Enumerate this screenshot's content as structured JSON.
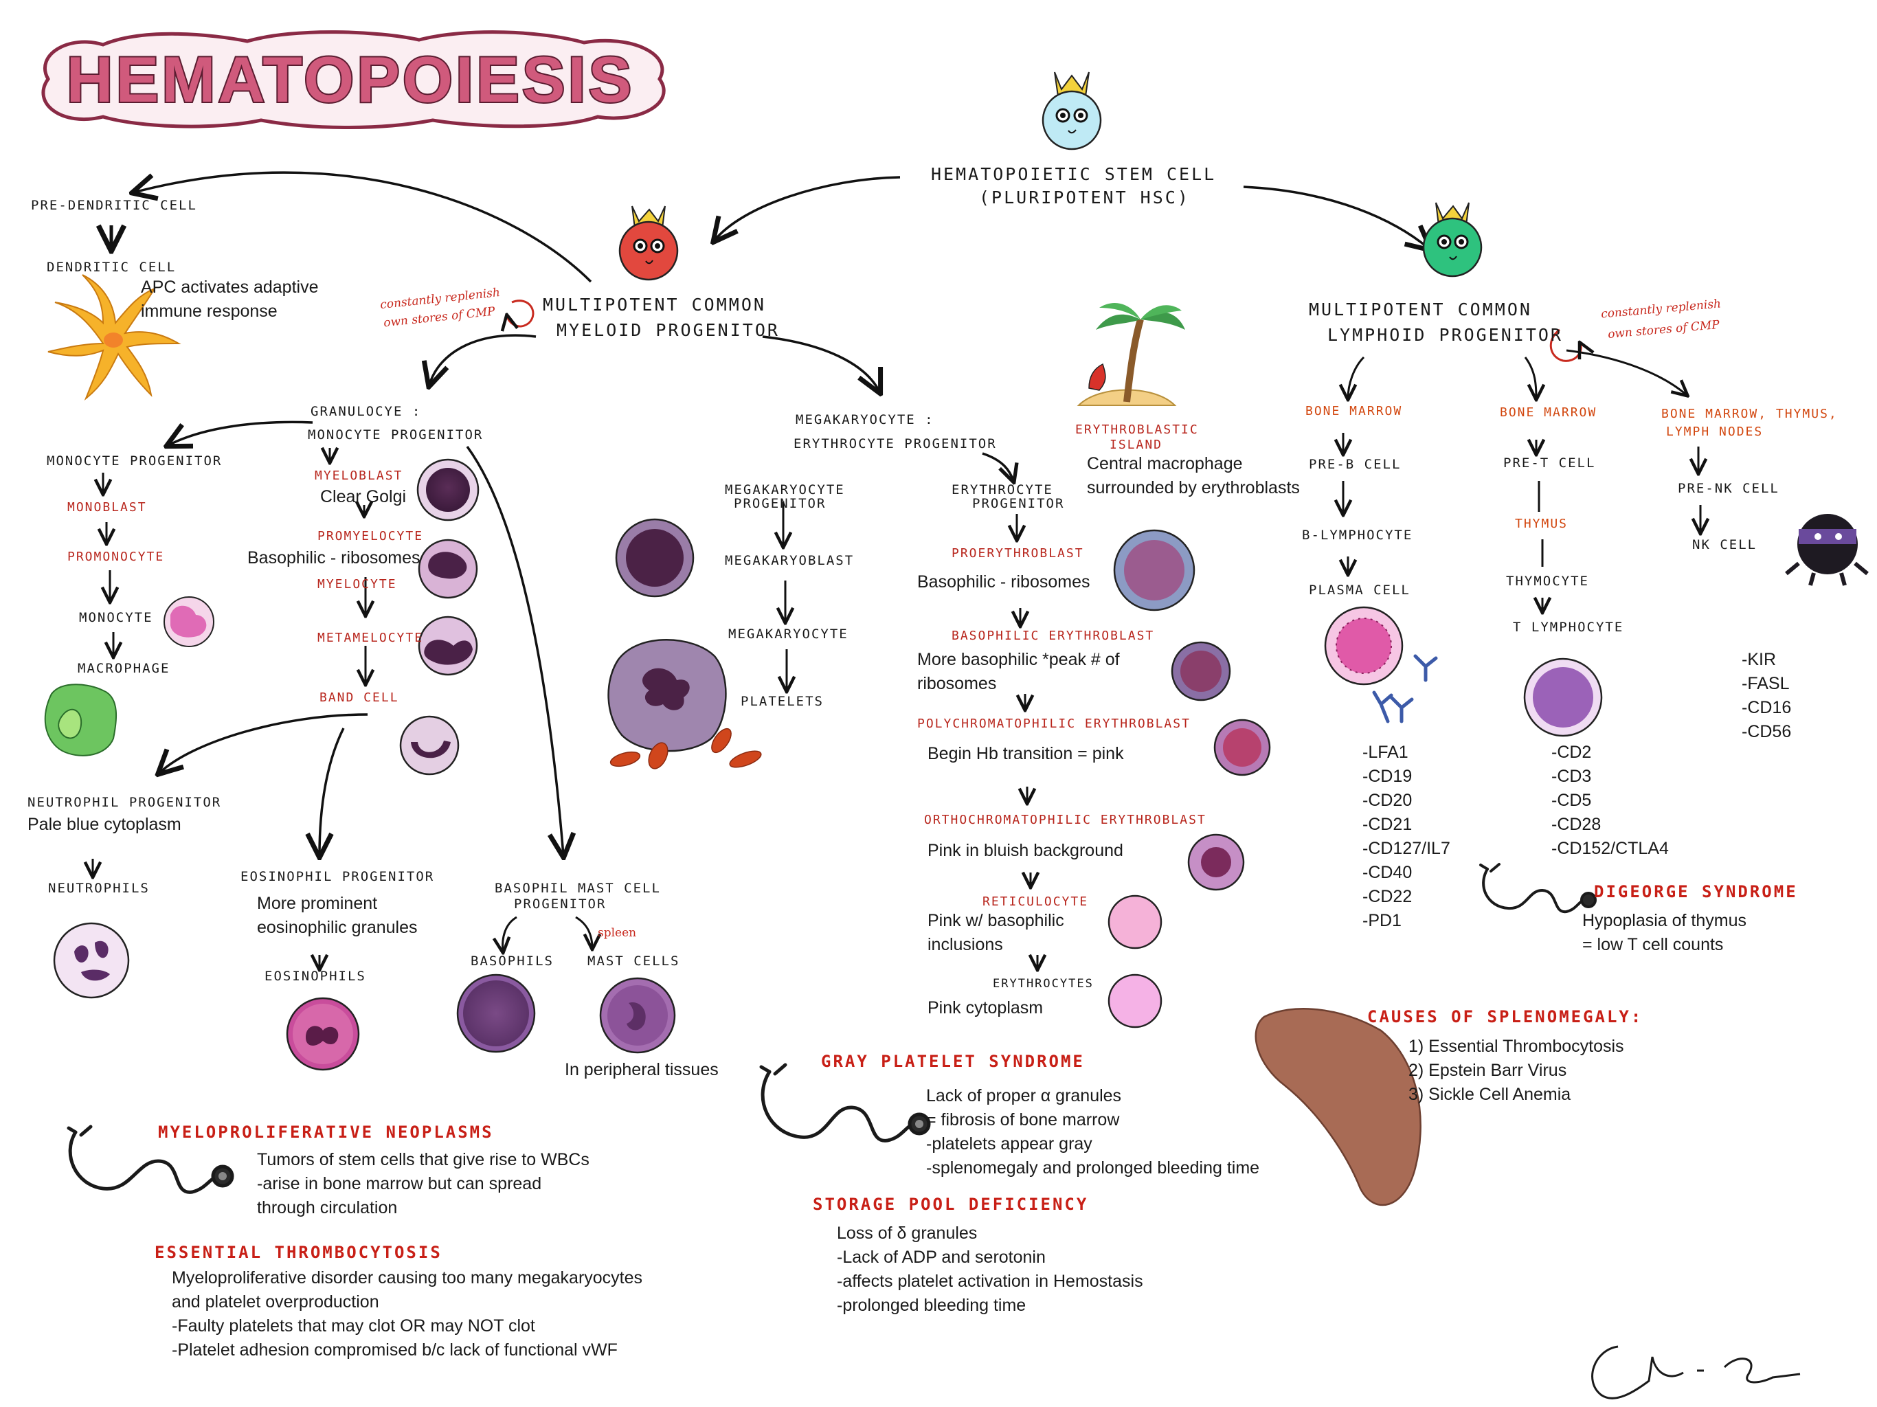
{
  "title": "HEMATOPOIESIS",
  "hsc": {
    "line1": "Hematopoietic stem cell",
    "line2": "(pluripotent HSC)"
  },
  "myeloid": {
    "line1": "Multipotent common",
    "line2": "myeloid progenitor",
    "note1": "constantly replenish",
    "note2": "own stores of CMP"
  },
  "lymphoid": {
    "line1": "Multipotent common",
    "line2": "lymphoid progenitor",
    "note1": "constantly replenish",
    "note2": "own stores of CMP"
  },
  "dendritic": {
    "pre": "Pre-dendritic cell",
    "cell": "Dendritic cell",
    "desc1": "APC activates adaptive",
    "desc2": "immune response"
  },
  "granulocyte": {
    "line1": "Granulocye :",
    "line2": "monocyte progenitor",
    "myeloblast": "Myeloblast",
    "myeloblast_desc": "Clear Golgi",
    "promyelocyte": "Promyelocyte",
    "promyelocyte_desc": "Basophilic - ribosomes",
    "myelocyte": "Myelocyte",
    "metamyelocyte": "Metamelocyte",
    "band": "Band cell"
  },
  "monocyte": {
    "progenitor": "Monocyte progenitor",
    "monoblast": "Monoblast",
    "promonocyte": "Promonocyte",
    "monocyte": "Monocyte",
    "macrophage": "Macrophage"
  },
  "neutrophil": {
    "progenitor": "Neutrophil progenitor",
    "desc": "Pale blue cytoplasm",
    "cells": "Neutrophils"
  },
  "eosinophil": {
    "progenitor": "Eosinophil progenitor",
    "desc1": "More prominent",
    "desc2": "eosinophilic granules",
    "cells": "Eosinophils"
  },
  "basophil": {
    "line1": "Basophil mast cell",
    "line2": "progenitor",
    "basophils": "Basophils",
    "spleen": "spleen",
    "mast": "Mast cells",
    "tissues": "In peripheral tissues"
  },
  "megerythro": {
    "line1": "Megakaryocyte :",
    "line2": "erythrocyte progenitor"
  },
  "megakaryocyte": {
    "prog1": "Megakaryocyte",
    "prog2": "progenitor",
    "blast": "Megakaryoblast",
    "cell": "Megakaryocyte",
    "platelets": "Platelets"
  },
  "erythro": {
    "prog1": "Erythrocyte",
    "prog2": "progenitor",
    "proerythroblast": "Proerythroblast",
    "proerythroblast_desc": "Basophilic - ribosomes",
    "basophilic": "Basophilic erythroblast",
    "basophilic_desc1": "More basophilic *peak # of",
    "basophilic_desc2": "ribosomes",
    "poly": "Polychromatophilic erythroblast",
    "poly_desc": "Begin Hb transition = pink",
    "ortho": "Orthochromatophilic erythroblast",
    "ortho_desc": "Pink in bluish background",
    "retic": "Reticulocyte",
    "retic_desc1": "Pink w/ basophilic",
    "retic_desc2": "inclusions",
    "erythrocytes": "Erythrocytes",
    "erythrocytes_desc": "Pink cytoplasm"
  },
  "island": {
    "label1": "Erythroblastic",
    "label2": "island",
    "desc1": "Central macrophage",
    "desc2": "surrounded by erythroblasts"
  },
  "bcell": {
    "site": "Bone marrow",
    "pre": "Pre-B cell",
    "lymph": "B-lymphocyte",
    "plasma": "Plasma cell",
    "markers": [
      "-LFA1",
      "-CD19",
      "-CD20",
      "-CD21",
      "-CD127/IL7",
      "-CD40",
      "-CD22",
      "-PD1"
    ]
  },
  "tcell": {
    "site": "Bone marrow",
    "pre": "Pre-T cell",
    "thymus": "Thymus",
    "thymocyte": "Thymocyte",
    "lymph": "T lymphocyte",
    "markers": [
      "-CD2",
      "-CD3",
      "-CD5",
      "-CD28",
      "-CD152/CTLA4"
    ]
  },
  "nkcell": {
    "site1": "Bone marrow, thymus,",
    "site2": "lymph nodes",
    "pre": "Pre-NK cell",
    "cell": "NK cell",
    "markers": [
      "-KIR",
      "-FASL",
      "-CD16",
      "-CD56"
    ]
  },
  "digeorge": {
    "title": "DiGeorge syndrome",
    "desc1": "Hypoplasia of thymus",
    "desc2": "= low T cell counts"
  },
  "splenomegaly": {
    "title": "Causes of splenomegaly:",
    "items": [
      "1) Essential Thrombocytosis",
      "2) Epstein Barr Virus",
      "3) Sickle Cell Anemia"
    ]
  },
  "gray": {
    "title": "Gray platelet syndrome",
    "lines": [
      "Lack of proper α granules",
      "= fibrosis of bone marrow",
      "-platelets appear gray",
      "-splenomegaly and prolonged bleeding time"
    ]
  },
  "storage": {
    "title": "Storage pool deficiency",
    "lines": [
      "Loss of δ granules",
      "-Lack of ADP and serotonin",
      "-affects platelet activation in Hemostasis",
      "-prolonged bleeding time"
    ]
  },
  "mpn": {
    "title": "Myeloproliferative neoplasms",
    "lines": [
      "Tumors of stem cells that give rise to WBCs",
      "-arise in bone marrow but can spread",
      "through circulation"
    ]
  },
  "et": {
    "title": "Essential thrombocytosis",
    "lines": [
      "Myeloproliferative disorder causing too many megakaryocytes",
      "and platelet overproduction",
      "-Faulty platelets that may clot OR may NOT clot",
      "-Platelet adhesion compromised b/c lack of functional vWF"
    ]
  },
  "colors": {
    "title_fill": "#d05a7c",
    "title_outline": "#8a2a45",
    "handwriting_red": "#b8261d",
    "orange": "#d2470f",
    "hsc_cell": "#bfeaf5",
    "myeloid_cell": "#e2483e",
    "lymphoid_cell": "#2ec27e",
    "crown": "#f3d23c"
  }
}
